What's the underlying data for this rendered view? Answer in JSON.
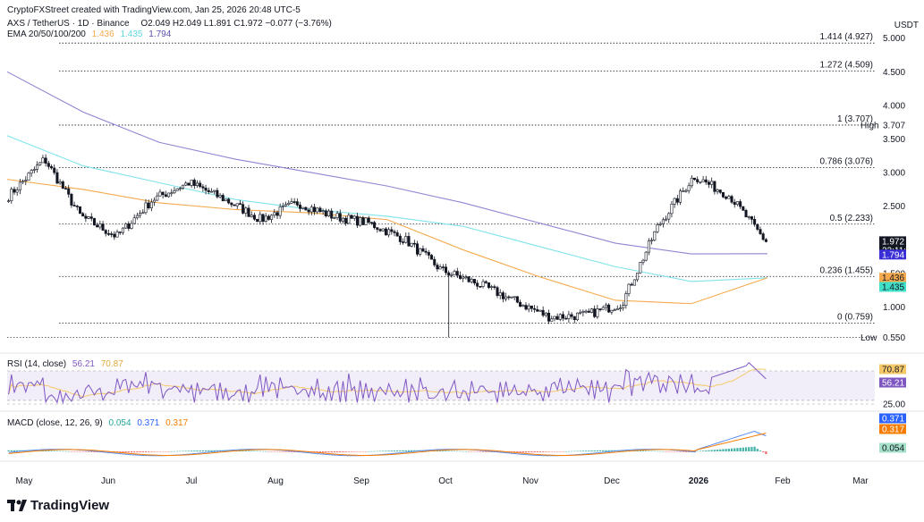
{
  "header": {
    "created_by": "CryptoFXStreet created with TradingView.com, Jan 25, 2026 20:48 UTC-5",
    "symbol_line": "AXS / TetherUS · 1D · Binance",
    "ohlc": "O2.049  H2.049  L1.891  C1.972  −0.077 (−3.76%)",
    "ema_label": "EMA 20/50/100/200",
    "ema_values": [
      "1.436",
      "1.435",
      "1.794"
    ],
    "currency": "USDT"
  },
  "colors": {
    "up": "#131722",
    "down": "#131722",
    "ema_orange": "#f5a94d",
    "ema_cyan": "#7fe3ea",
    "ema_purple": "#8e86d2",
    "rsi_line": "#7e57c2",
    "rsi_ma": "#f5c96a",
    "macd_line": "#5b8def",
    "signal_line": "#f57c00",
    "hist_up": "#26a69a",
    "hist_down": "#ef5350"
  },
  "fib_levels": [
    {
      "label": "1.414 (4.927)",
      "value": 4.927
    },
    {
      "label": "1.272 (4.509)",
      "value": 4.509
    },
    {
      "label": "1 (3.707)",
      "value": 3.707
    },
    {
      "label": "0.786 (3.076)",
      "value": 3.076
    },
    {
      "label": "0.5 (2.233)",
      "value": 2.233
    },
    {
      "label": "0.236 (1.455)",
      "value": 1.455
    },
    {
      "label": "0 (0.759)",
      "value": 0.759
    }
  ],
  "price_axis": {
    "ticks": [
      "5.000",
      "4.500",
      "4.000",
      "3.500",
      "3.000",
      "2.500",
      "2.000",
      "1.500",
      "1.000",
      "0.550"
    ],
    "tick_values": [
      5.0,
      4.5,
      4.0,
      3.5,
      3.0,
      2.5,
      2.0,
      1.5,
      1.0,
      0.55
    ]
  },
  "price_tags": {
    "high_label": "High",
    "high_value": "3.707",
    "low_label": "Low",
    "low_value": "0.550",
    "last_price": "1.972",
    "countdown": "22:11:18",
    "ema200": "1.794",
    "ema50": "1.436",
    "ema100": "1.435"
  },
  "rsi": {
    "label": "RSI (14, close)",
    "value": "56.21",
    "ma": "70.87",
    "ticks": [
      "25.00"
    ],
    "levels": [
      70,
      30
    ]
  },
  "macd": {
    "label": "MACD (close, 12, 26, 9)",
    "hist": "0.054",
    "macd": "0.371",
    "signal": "0.317"
  },
  "time_axis": {
    "months": [
      "May",
      "Jun",
      "Jul",
      "Aug",
      "Sep",
      "Oct",
      "Nov",
      "Dec",
      "2026",
      "Feb",
      "Mar"
    ]
  },
  "brand": "TradingView",
  "chart_data": {
    "type": "candlestick",
    "symbol": "AXS/USDT",
    "interval": "1D",
    "x": [
      "2025-05-01",
      "2025-06-01",
      "2025-07-01",
      "2025-08-01",
      "2025-09-01",
      "2025-10-01",
      "2025-11-01",
      "2025-12-01",
      "2026-01-01",
      "2026-01-25"
    ],
    "close_path": [
      2.65,
      3.2,
      2.35,
      2.05,
      2.6,
      2.85,
      2.6,
      2.3,
      2.55,
      2.35,
      2.25,
      2.0,
      1.55,
      1.35,
      1.1,
      0.85,
      0.88,
      1.05,
      2.2,
      2.95,
      2.65,
      1.972
    ],
    "ema200": [
      4.5,
      3.9,
      3.45,
      3.2,
      3.0,
      2.8,
      2.55,
      2.25,
      1.95,
      1.79,
      1.794
    ],
    "ema100": [
      3.55,
      3.1,
      2.85,
      2.6,
      2.45,
      2.35,
      2.2,
      1.9,
      1.6,
      1.38,
      1.435
    ],
    "ema50": [
      2.9,
      2.75,
      2.55,
      2.45,
      2.4,
      2.3,
      1.85,
      1.45,
      1.1,
      1.05,
      1.436
    ],
    "last": {
      "open": 2.049,
      "high": 2.049,
      "low": 1.891,
      "close": 1.972
    },
    "rsi_values": [
      56.21
    ],
    "macd_values": {
      "macd": 0.371,
      "signal": 0.317,
      "hist": 0.054
    },
    "ylim": [
      0.55,
      5.1
    ]
  }
}
